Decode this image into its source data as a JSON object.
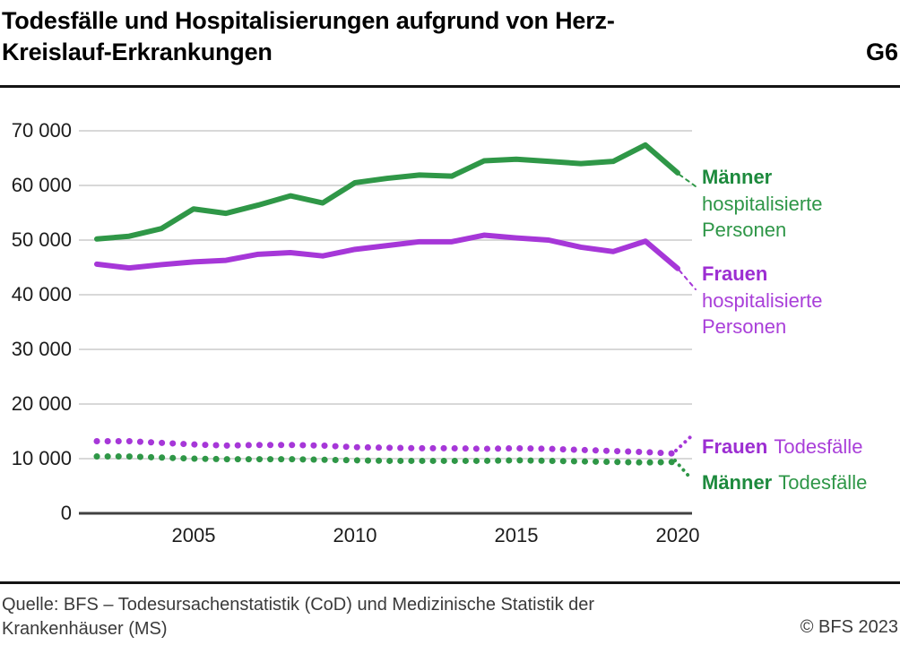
{
  "header": {
    "title_line1": "Todesfälle und Hospitalisierungen aufgrund von Herz-",
    "title_line2": "Kreislauf-Erkrankungen",
    "figure_id": "G6"
  },
  "colors": {
    "maenner_line": "#2f9747",
    "frauen_line": "#a637d8",
    "maenner_text_bold": "#1d8a3d",
    "maenner_text": "#2e9647",
    "frauen_text_bold": "#9c2ed2",
    "frauen_text": "#a93fd9",
    "grid": "#cccccc",
    "axis": "#404040"
  },
  "chart_data": {
    "type": "line",
    "title": "Todesfälle und Hospitalisierungen aufgrund von Herz-Kreislauf-Erkrankungen",
    "x": [
      2002,
      2003,
      2004,
      2005,
      2006,
      2007,
      2008,
      2009,
      2010,
      2011,
      2012,
      2013,
      2014,
      2015,
      2016,
      2017,
      2018,
      2019,
      2020
    ],
    "series": [
      {
        "name": "Männer hospitalisierte Personen",
        "style": "solid",
        "color_key": "maenner_line",
        "values": [
          50200,
          50700,
          52100,
          55700,
          54900,
          56400,
          58100,
          56800,
          60500,
          61300,
          61900,
          61700,
          64500,
          64800,
          64400,
          64000,
          64400,
          67400,
          62300
        ]
      },
      {
        "name": "Frauen hospitalisierte Personen",
        "style": "solid",
        "color_key": "frauen_line",
        "values": [
          45600,
          44900,
          45500,
          46000,
          46300,
          47400,
          47700,
          47100,
          48300,
          49000,
          49700,
          49700,
          50900,
          50400,
          50000,
          48700,
          47900,
          49800,
          44800
        ]
      },
      {
        "name": "Frauen Todesfälle",
        "style": "dotted",
        "color_key": "frauen_line",
        "values": [
          13200,
          13200,
          12900,
          12600,
          12400,
          12500,
          12500,
          12400,
          12100,
          12000,
          11900,
          11900,
          11800,
          11900,
          11800,
          11600,
          11400,
          11200,
          10900
        ]
      },
      {
        "name": "Männer Todesfälle",
        "style": "dotted",
        "color_key": "maenner_line",
        "values": [
          10400,
          10400,
          10200,
          10000,
          9900,
          9900,
          9900,
          9800,
          9700,
          9600,
          9600,
          9600,
          9600,
          9700,
          9600,
          9500,
          9400,
          9300,
          9400
        ]
      }
    ],
    "ylim": [
      0,
      70000
    ],
    "yticks": [
      0,
      10000,
      20000,
      30000,
      40000,
      50000,
      60000,
      70000
    ],
    "ytick_labels": [
      "0",
      "10 000",
      "20 000",
      "30 000",
      "40 000",
      "50 000",
      "60 000",
      "70 000"
    ],
    "xticks": [
      2005,
      2010,
      2015,
      2020
    ],
    "xtick_labels": [
      "2005",
      "2010",
      "2015",
      "2020"
    ],
    "grid": "horizontal",
    "legend_position": "right"
  },
  "legend": {
    "hosp_m": {
      "bold": "Männer",
      "l2": "hospitalisierte",
      "l3": "Personen"
    },
    "hosp_f": {
      "bold": "Frauen",
      "l2": "hospitalisierte",
      "l3": "Personen"
    },
    "tod_f": {
      "bold": "Frauen",
      "rest": "Todesfälle"
    },
    "tod_m": {
      "bold": "Männer",
      "rest": "Todesfälle"
    }
  },
  "footer": {
    "source": "Quelle: BFS – Todesursachenstatistik (CoD) und Medizinische Statistik der Krankenhäuser (MS)",
    "copyright": "© BFS 2023"
  }
}
